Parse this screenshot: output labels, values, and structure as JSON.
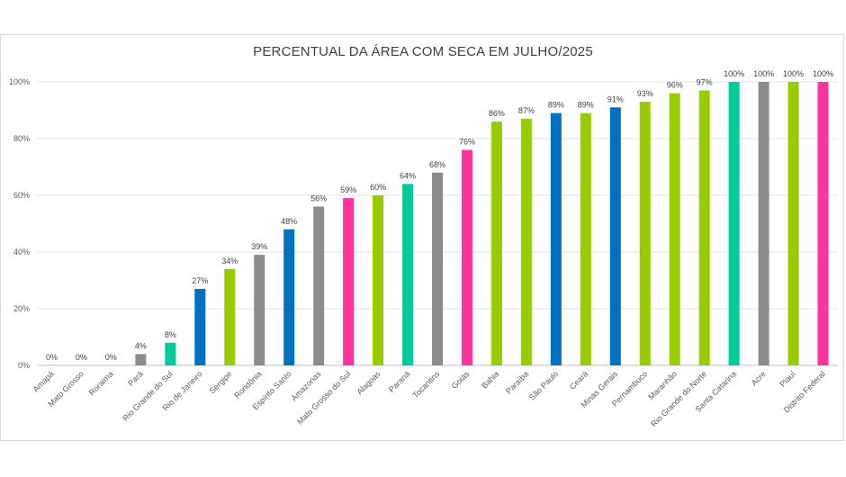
{
  "chart_data": {
    "type": "bar",
    "title": "PERCENTUAL DA ÁREA COM SECA EM JULHO/2025",
    "xlabel": "",
    "ylabel": "",
    "ylim": [
      0,
      100
    ],
    "y_ticks": [
      "0%",
      "20%",
      "40%",
      "60%",
      "80%",
      "100%"
    ],
    "grid": true,
    "legend": "none",
    "categories": [
      "Amapá",
      "Mato Grosso",
      "Roraima",
      "Pará",
      "Rio Grande do Sul",
      "Rio de Janeiro",
      "Sergipe",
      "Rondônia",
      "Espírito Santo",
      "Amazonas",
      "Mato Grosso do Sul",
      "Alagoas",
      "Paraná",
      "Tocantins",
      "Goiás",
      "Bahia",
      "Paraíba",
      "São Paulo",
      "Ceará",
      "Minas Gerais",
      "Pernambuco",
      "Maranhão",
      "Rio Grande do Norte",
      "Santa Catarina",
      "Acre",
      "Piauí",
      "Distrito Federal"
    ],
    "values": [
      0,
      0,
      0,
      4,
      8,
      27,
      34,
      39,
      48,
      56,
      59,
      60,
      64,
      68,
      76,
      86,
      87,
      89,
      89,
      91,
      93,
      96,
      97,
      100,
      100,
      100,
      100
    ],
    "value_labels": [
      "0%",
      "0%",
      "0%",
      "4%",
      "8%",
      "27%",
      "34%",
      "39%",
      "48%",
      "56%",
      "59%",
      "60%",
      "64%",
      "68%",
      "76%",
      "86%",
      "87%",
      "89%",
      "89%",
      "91%",
      "93%",
      "96%",
      "97%",
      "100%",
      "100%",
      "100%",
      "100%"
    ],
    "colors": [
      "#8c8c8c",
      "#8c8c8c",
      "#8c8c8c",
      "#8c8c8c",
      "#00cc99",
      "#0070c0",
      "#99cc00",
      "#8c8c8c",
      "#0070c0",
      "#8c8c8c",
      "#ff3399",
      "#99cc00",
      "#00cc99",
      "#8c8c8c",
      "#ff3399",
      "#99cc00",
      "#99cc00",
      "#0070c0",
      "#99cc00",
      "#0070c0",
      "#99cc00",
      "#99cc00",
      "#99cc00",
      "#00cc99",
      "#8c8c8c",
      "#99cc00",
      "#ff3399"
    ]
  }
}
